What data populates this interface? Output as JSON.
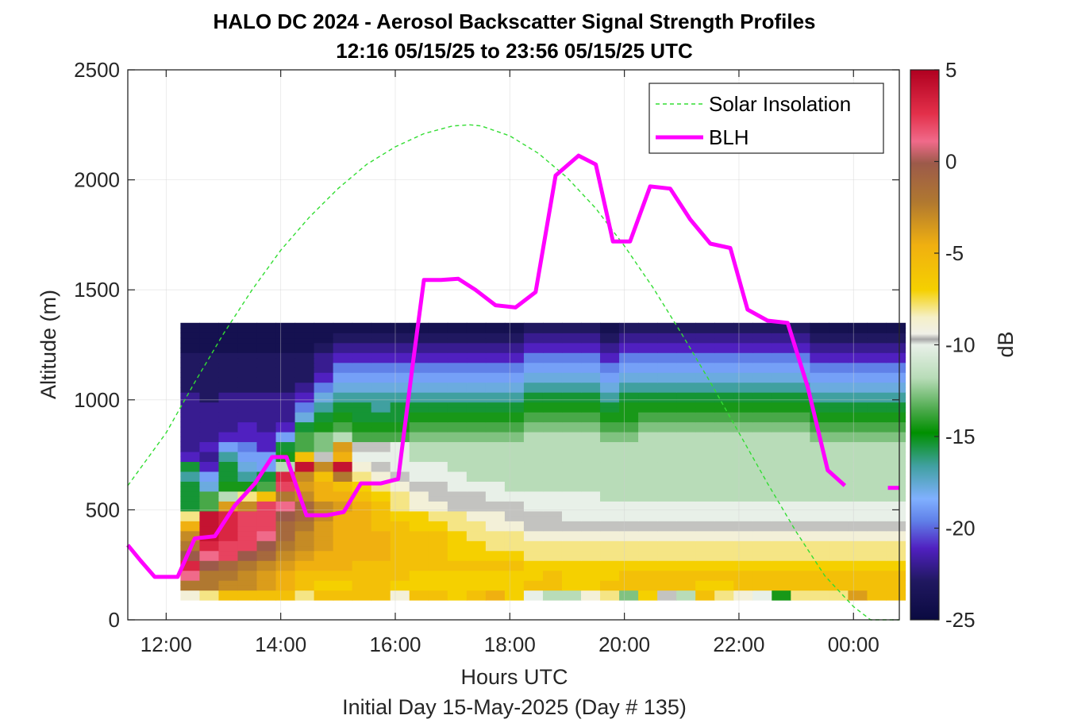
{
  "chart_data": {
    "type": "heatmap",
    "title": "HALO DC 2024 - Aerosol Backscatter Signal Strength Profiles",
    "subtitle": "12:16 05/15/25 to 23:56 05/15/25  UTC",
    "xlabel": "Hours UTC",
    "xlabel2": "Initial Day 15-May-2025 (Day # 135)",
    "ylabel": "Altitude (m)",
    "colorbar_label": "dB",
    "x_axis": {
      "start_hour": 11.33,
      "end_hour": 24.8,
      "ticks": [
        "12:00",
        "14:00",
        "16:00",
        "18:00",
        "20:00",
        "22:00",
        "00:00"
      ],
      "tick_hours": [
        12,
        14,
        16,
        18,
        20,
        22,
        24
      ]
    },
    "y_axis": {
      "min": 0,
      "max": 2500,
      "ticks": [
        0,
        500,
        1000,
        1500,
        2000,
        2500
      ]
    },
    "colorbar": {
      "min": -25,
      "max": 5,
      "ticks": [
        5,
        0,
        -5,
        -10,
        -15,
        -20,
        -25
      ]
    },
    "grid": true,
    "legend": {
      "position": "top-right",
      "entries": [
        {
          "label": "Solar Insolation",
          "style": "dashed",
          "color": "#33dd33"
        },
        {
          "label": "BLH",
          "style": "solid",
          "color": "#ff00ff"
        }
      ]
    },
    "heatmap": {
      "columns_start_hour": 12.25,
      "column_step_hours": 0.333,
      "row_start_m": 90,
      "row_step_m": 45,
      "rows": [
        [
          -9,
          -8,
          -6,
          -6,
          -6,
          -6,
          -8,
          -6,
          -6,
          -6,
          -6,
          -9,
          -6,
          -6,
          -7,
          -6,
          -5,
          -7,
          -11,
          -12,
          -12,
          -9,
          -8,
          -13,
          -7,
          -10,
          -12,
          -6,
          -8,
          -9,
          -11,
          -15,
          -8,
          -8,
          -8,
          -4,
          -6,
          -6
        ],
        [
          -2,
          -2,
          -3,
          -3,
          -4,
          -5,
          -6,
          -7,
          -7,
          -6,
          -6,
          -7,
          -7,
          -7,
          -7,
          -7,
          -7,
          -7,
          -6,
          -6,
          -7,
          -7,
          -6,
          -6,
          -6,
          -6,
          -6,
          -7,
          -7,
          -6,
          -6,
          -6,
          -6,
          -6,
          -6,
          -6,
          -6,
          -6
        ],
        [
          1,
          -2,
          -2,
          -3,
          -4,
          -5,
          -6,
          -6,
          -6,
          -6,
          -6,
          -6,
          -7,
          -7,
          -7,
          -7,
          -7,
          -7,
          -7,
          -6,
          -7,
          -7,
          -7,
          -6,
          -6,
          -6,
          -6,
          -6,
          -6,
          -6,
          -6,
          -6,
          -6,
          -6,
          -6,
          -6,
          -6,
          -6
        ],
        [
          3,
          0,
          -1,
          -2,
          -3,
          -4,
          -5,
          -5,
          -5,
          -6,
          -6,
          -6,
          -6,
          -6,
          -6,
          -6,
          -6,
          -6,
          -7,
          -7,
          -7,
          -7,
          -7,
          -7,
          -7,
          -7,
          -7,
          -7,
          -7,
          -7,
          -7,
          -7,
          -7,
          -7,
          -7,
          -7,
          -7,
          -7
        ],
        [
          0,
          1,
          2,
          0,
          -1,
          -3,
          -4,
          -5,
          -5,
          -5,
          -5,
          -6,
          -6,
          -6,
          -7,
          -7,
          -7,
          -7,
          -8,
          -8,
          -8,
          -8,
          -8,
          -8,
          -8,
          -8,
          -8,
          -8,
          -8,
          -8,
          -8,
          -8,
          -8,
          -8,
          -8,
          -8,
          -8,
          -8
        ],
        [
          -2,
          3,
          2,
          2,
          0,
          -2,
          -3,
          -4,
          -5,
          -5,
          -5,
          -6,
          -6,
          -6,
          -7,
          -7,
          -8,
          -8,
          -8,
          -8,
          -8,
          -8,
          -8,
          -8,
          -8,
          -8,
          -8,
          -8,
          -8,
          -8,
          -8,
          -8,
          -8,
          -8,
          -8,
          -8,
          -8,
          -8
        ],
        [
          -3,
          4,
          3,
          2,
          1,
          -1,
          -3,
          -4,
          -5,
          -5,
          -5,
          -6,
          -6,
          -6,
          -7,
          -8,
          -8,
          -8,
          -9,
          -9,
          -9,
          -9,
          -9,
          -9,
          -9,
          -9,
          -9,
          -9,
          -9,
          -9,
          -9,
          -9,
          -9,
          -9,
          -9,
          -9,
          -9,
          -9
        ],
        [
          -5,
          4,
          3,
          2,
          2,
          -1,
          -2,
          -4,
          -5,
          -5,
          -6,
          -6,
          -7,
          -7,
          -8,
          -8,
          -9,
          -9,
          -10,
          -10,
          -10,
          -10,
          -10,
          -10,
          -10,
          -10,
          -10,
          -10,
          -10,
          -10,
          -10,
          -10,
          -10,
          -10,
          -10,
          -10,
          -10,
          -10
        ],
        [
          -8,
          4,
          3,
          2,
          2,
          0,
          -1,
          -3,
          -5,
          -5,
          -6,
          -7,
          -7,
          -8,
          -8,
          -9,
          -9,
          -10,
          -10,
          -10,
          -11,
          -11,
          -11,
          -11,
          -11,
          -11,
          -11,
          -11,
          -11,
          -11,
          -11,
          -11,
          -11,
          -11,
          -11,
          -11,
          -11,
          -11
        ],
        [
          -16,
          -14,
          -4,
          -3,
          2,
          1,
          -1,
          -3,
          -4,
          -5,
          -6,
          -8,
          -9,
          -9,
          -10,
          -10,
          -10,
          -10,
          -11,
          -11,
          -11,
          -11,
          -11,
          -11,
          -11,
          -11,
          -11,
          -11,
          -11,
          -11,
          -11,
          -11,
          -11,
          -11,
          -11,
          -11,
          -11,
          -11
        ],
        [
          -16,
          -14,
          -12,
          -8,
          -6,
          -2,
          -3,
          -5,
          -5,
          -6,
          -7,
          -8,
          -9,
          -10,
          -10,
          -10,
          -11,
          -11,
          -11,
          -11,
          -11,
          -11,
          -12,
          -12,
          -12,
          -12,
          -12,
          -12,
          -12,
          -12,
          -12,
          -12,
          -12,
          -12,
          -12,
          -12,
          -12,
          -12
        ],
        [
          -16,
          -18,
          -15,
          -15,
          -14,
          2,
          -4,
          -5,
          -6,
          -7,
          -8,
          -9,
          -10,
          -10,
          -11,
          -11,
          -11,
          -12,
          -12,
          -12,
          -12,
          -12,
          -12,
          -12,
          -12,
          -12,
          -12,
          -12,
          -12,
          -12,
          -12,
          -12,
          -12,
          -12,
          -12,
          -12,
          -12,
          -12
        ],
        [
          -17,
          -19,
          -16,
          -17,
          -16,
          3,
          -3,
          -6,
          -2,
          -8,
          -9,
          -10,
          -11,
          -11,
          -11,
          -12,
          -12,
          -12,
          -12,
          -12,
          -12,
          -12,
          -12,
          -12,
          -12,
          -12,
          -12,
          -12,
          -12,
          -12,
          -12,
          -12,
          -12,
          -12,
          -12,
          -12,
          -12,
          -12
        ],
        [
          -16,
          -21,
          -16,
          -18,
          -19,
          -12,
          4,
          -3,
          4,
          -9,
          -10,
          -11,
          -11,
          -11,
          -12,
          -12,
          -12,
          -12,
          -12,
          -12,
          -12,
          -12,
          -12,
          -12,
          -12,
          -12,
          -12,
          -12,
          -12,
          -12,
          -12,
          -12,
          -12,
          -12,
          -12,
          -12,
          -12,
          -12
        ],
        [
          -21,
          -22,
          -17,
          -19,
          -19,
          -15,
          -6,
          -10,
          -5,
          -11,
          -11,
          -11,
          -12,
          -12,
          -12,
          -12,
          -12,
          -12,
          -12,
          -12,
          -12,
          -12,
          -12,
          -12,
          -12,
          -12,
          -12,
          -12,
          -12,
          -12,
          -12,
          -12,
          -12,
          -12,
          -12,
          -12,
          -12,
          -12
        ],
        [
          -22,
          -21,
          -19,
          -20,
          -21,
          -16,
          -14,
          -13,
          -4,
          -10,
          -10,
          -11,
          -12,
          -12,
          -12,
          -12,
          -12,
          -12,
          -12,
          -12,
          -12,
          -12,
          -12,
          -12,
          -12,
          -12,
          -12,
          -12,
          -12,
          -12,
          -12,
          -12,
          -12,
          -12,
          -12,
          -12,
          -12,
          -12
        ],
        [
          -22,
          -22,
          -21,
          -21,
          -21,
          -19,
          -14,
          -13,
          -12,
          -14,
          -14,
          -14,
          -13,
          -13,
          -13,
          -13,
          -13,
          -13,
          -12,
          -12,
          -12,
          -12,
          -13,
          -13,
          -12,
          -12,
          -12,
          -12,
          -12,
          -12,
          -12,
          -12,
          -12,
          -13,
          -13,
          -13,
          -13,
          -13
        ],
        [
          -22,
          -22,
          -22,
          -21,
          -22,
          -21,
          -16,
          -15,
          -14,
          -15,
          -15,
          -15,
          -14,
          -14,
          -14,
          -14,
          -14,
          -14,
          -13,
          -13,
          -13,
          -13,
          -14,
          -14,
          -13,
          -13,
          -13,
          -13,
          -13,
          -13,
          -13,
          -13,
          -13,
          -14,
          -14,
          -14,
          -14,
          -14
        ],
        [
          -22,
          -22,
          -22,
          -22,
          -22,
          -22,
          -18,
          -16,
          -15,
          -16,
          -16,
          -16,
          -15,
          -15,
          -15,
          -15,
          -15,
          -15,
          -14,
          -14,
          -14,
          -14,
          -15,
          -15,
          -14,
          -14,
          -14,
          -14,
          -14,
          -14,
          -14,
          -14,
          -14,
          -15,
          -15,
          -15,
          -15,
          -15
        ],
        [
          -22,
          -22,
          -22,
          -22,
          -22,
          -22,
          -20,
          -17,
          -16,
          -16,
          -17,
          -16,
          -16,
          -16,
          -16,
          -16,
          -16,
          -16,
          -15,
          -15,
          -15,
          -15,
          -16,
          -15,
          -15,
          -15,
          -15,
          -15,
          -15,
          -15,
          -15,
          -15,
          -15,
          -16,
          -16,
          -16,
          -16,
          -16
        ],
        [
          -22,
          -23,
          -22,
          -22,
          -22,
          -22,
          -21,
          -18,
          -17,
          -17,
          -17,
          -17,
          -17,
          -17,
          -17,
          -17,
          -17,
          -17,
          -16,
          -16,
          -16,
          -16,
          -17,
          -16,
          -16,
          -16,
          -16,
          -16,
          -16,
          -16,
          -16,
          -16,
          -16,
          -17,
          -17,
          -17,
          -17,
          -17
        ],
        [
          -23,
          -23,
          -23,
          -23,
          -23,
          -23,
          -22,
          -20,
          -18,
          -18,
          -18,
          -18,
          -18,
          -18,
          -18,
          -18,
          -18,
          -18,
          -17,
          -17,
          -17,
          -17,
          -18,
          -17,
          -17,
          -17,
          -17,
          -17,
          -17,
          -17,
          -17,
          -17,
          -17,
          -18,
          -18,
          -18,
          -18,
          -18
        ],
        [
          -23,
          -23,
          -23,
          -23,
          -23,
          -23,
          -23,
          -21,
          -19,
          -19,
          -19,
          -19,
          -19,
          -19,
          -19,
          -19,
          -19,
          -19,
          -18,
          -18,
          -18,
          -18,
          -19,
          -18,
          -18,
          -18,
          -18,
          -18,
          -18,
          -18,
          -18,
          -18,
          -18,
          -19,
          -19,
          -19,
          -19,
          -19
        ],
        [
          -23,
          -23,
          -23,
          -23,
          -23,
          -23,
          -23,
          -22,
          -20,
          -20,
          -20,
          -20,
          -20,
          -20,
          -20,
          -20,
          -20,
          -20,
          -19,
          -19,
          -19,
          -19,
          -20,
          -19,
          -19,
          -19,
          -19,
          -19,
          -19,
          -19,
          -19,
          -19,
          -19,
          -20,
          -20,
          -20,
          -20,
          -20
        ],
        [
          -23,
          -23,
          -23,
          -23,
          -23,
          -23,
          -23,
          -22,
          -21,
          -21,
          -21,
          -21,
          -21,
          -21,
          -21,
          -21,
          -21,
          -21,
          -20,
          -20,
          -20,
          -20,
          -21,
          -20,
          -20,
          -20,
          -20,
          -20,
          -20,
          -20,
          -20,
          -20,
          -20,
          -21,
          -21,
          -21,
          -21,
          -21
        ],
        [
          -24,
          -24,
          -24,
          -24,
          -24,
          -24,
          -24,
          -23,
          -22,
          -22,
          -22,
          -22,
          -22,
          -22,
          -22,
          -22,
          -22,
          -22,
          -21,
          -21,
          -21,
          -21,
          -22,
          -21,
          -21,
          -21,
          -21,
          -21,
          -21,
          -21,
          -21,
          -21,
          -21,
          -22,
          -22,
          -22,
          -22,
          -22
        ],
        [
          -24,
          -24,
          -24,
          -24,
          -24,
          -24,
          -24,
          -24,
          -23,
          -23,
          -23,
          -23,
          -23,
          -23,
          -23,
          -23,
          -23,
          -23,
          -22,
          -22,
          -22,
          -22,
          -23,
          -22,
          -22,
          -22,
          -22,
          -22,
          -22,
          -22,
          -22,
          -22,
          -22,
          -23,
          -23,
          -23,
          -23,
          -23
        ],
        [
          -24,
          -24,
          -24,
          -24,
          -24,
          -24,
          -24,
          -24,
          -24,
          -24,
          -24,
          -24,
          -24,
          -24,
          -24,
          -24,
          -24,
          -24,
          -23,
          -23,
          -23,
          -23,
          -24,
          -23,
          -23,
          -23,
          -23,
          -23,
          -23,
          -23,
          -23,
          -23,
          -23,
          -24,
          -24,
          -24,
          -24,
          -24
        ]
      ],
      "row_repeat": 2
    },
    "solar_insolation": {
      "x": [
        11.33,
        12.0,
        12.5,
        13.0,
        13.5,
        14.0,
        14.5,
        15.0,
        15.5,
        16.0,
        16.5,
        17.0,
        17.3,
        17.5,
        18.0,
        18.5,
        19.0,
        19.5,
        20.0,
        20.5,
        21.0,
        21.5,
        22.0,
        22.5,
        23.0,
        23.5,
        24.0,
        24.3,
        24.8
      ],
      "y": [
        610,
        850,
        1080,
        1300,
        1500,
        1680,
        1830,
        1960,
        2070,
        2150,
        2210,
        2245,
        2250,
        2245,
        2200,
        2120,
        2010,
        1870,
        1700,
        1510,
        1300,
        1080,
        850,
        620,
        400,
        200,
        60,
        0,
        0
      ]
    },
    "blh": {
      "x": [
        11.33,
        11.55,
        11.8,
        12.2,
        12.5,
        12.85,
        13.2,
        13.55,
        13.85,
        14.1,
        14.45,
        14.8,
        15.1,
        15.4,
        15.75,
        16.05,
        16.3,
        16.5,
        16.8,
        17.1,
        17.4,
        17.75,
        18.1,
        18.45,
        18.8,
        19.2,
        19.5,
        19.8,
        20.1,
        20.45,
        20.8,
        21.15,
        21.5,
        21.85,
        22.15,
        22.5,
        22.85,
        23.2,
        23.55,
        23.85
      ],
      "y": [
        340,
        270,
        195,
        195,
        370,
        380,
        520,
        620,
        740,
        740,
        475,
        475,
        490,
        620,
        620,
        640,
        1150,
        1545,
        1545,
        1550,
        1500,
        1430,
        1420,
        1490,
        2020,
        2110,
        2070,
        1720,
        1720,
        1970,
        1960,
        1820,
        1710,
        1690,
        1410,
        1360,
        1350,
        1060,
        680,
        610
      ],
      "tail_x": [
        24.6,
        24.8
      ],
      "tail_y": [
        600,
        600
      ]
    }
  }
}
